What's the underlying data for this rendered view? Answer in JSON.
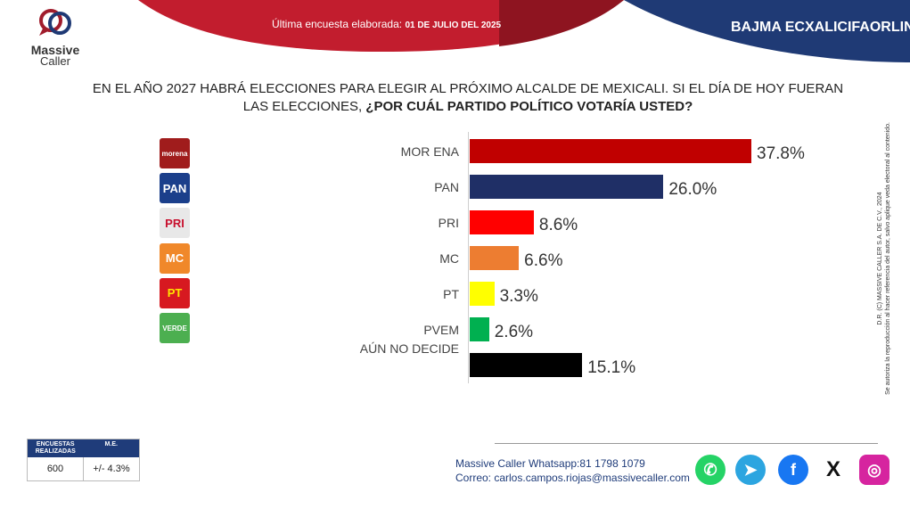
{
  "header": {
    "survey_label": "Última encuesta elaborada:",
    "survey_date": "01 DE JULIO DEL 2025",
    "region": "BAJMA ECXALICIFAORLIN"
  },
  "logo": {
    "line1": "Massive",
    "line2": "Caller"
  },
  "question": {
    "line1": "EN EL AÑO 2027 HABRÁ ELECCIONES PARA ELEGIR AL PRÓXIMO ALCALDE DE MEXICALI. SI EL DÍA DE HOY FUERAN",
    "line2_plain": "LAS ELECCIONES, ",
    "line2_bold": "¿POR CUÁL PARTIDO POLÍTICO VOTARÍA USTED?"
  },
  "party_logos": [
    {
      "text": "morena",
      "icon": "morena-logo-icon",
      "bg": "#a01c1c",
      "fg": "#ffffff"
    },
    {
      "text": "PAN",
      "icon": "pan-logo-icon",
      "bg": "#1b3f8b",
      "fg": "#ffffff"
    },
    {
      "text": "PRI",
      "icon": "pri-logo-icon",
      "bg": "#e8e8e8",
      "fg": "#c8102e"
    },
    {
      "text": "MC",
      "icon": "mc-logo-icon",
      "bg": "#f0882a",
      "fg": "#ffffff"
    },
    {
      "text": "PT",
      "icon": "pt-logo-icon",
      "bg": "#d71920",
      "fg": "#ffe600"
    },
    {
      "text": "VERDE",
      "icon": "verde-logo-icon",
      "bg": "#4caf50",
      "fg": "#ffffff"
    }
  ],
  "chart_data": {
    "type": "bar",
    "orientation": "horizontal",
    "title": "¿POR CUÁL PARTIDO POLÍTICO VOTARÍA USTED?",
    "categories": [
      "MOR ENA",
      "PAN",
      "PRI",
      "MC",
      "PT",
      "PVEM",
      "AÚN NO DECIDE"
    ],
    "values": [
      37.8,
      26.0,
      8.6,
      6.6,
      3.3,
      2.6,
      15.1
    ],
    "value_labels": [
      "37.8%",
      "26.0%",
      "8.6%",
      "6.6%",
      "3.3%",
      "2.6%",
      "15.1%"
    ],
    "colors": [
      "#c00000",
      "#1f2f66",
      "#ff0000",
      "#ed7d31",
      "#ffff00",
      "#00b050",
      "#000000"
    ],
    "xlim": [
      0,
      40
    ],
    "grid": false,
    "legend": "none"
  },
  "side_note": {
    "line1": "D.R. (C) MASSIVE CALLER S.A. DE C.V., 2024",
    "line2": "Se autoriza la reproducción al hacer referencia del autor, salvo aplique veda electoral al contenido."
  },
  "stats": {
    "col1_header": "ENCUESTAS REALIZADAS",
    "col2_header": "M.E.",
    "col1_value": "600",
    "col2_value": "+/- 4.3%"
  },
  "contact": {
    "whatsapp": "Massive Caller Whatsapp:81 1798 1079",
    "email": "Correo: carlos.campos.riojas@massivecaller.com"
  },
  "social": [
    {
      "icon": "whatsapp-icon",
      "glyph": "✆",
      "color": "#25d366"
    },
    {
      "icon": "telegram-icon",
      "glyph": "➤",
      "color": "#2ca5e0"
    },
    {
      "icon": "facebook-icon",
      "glyph": "f",
      "color": "#1877f2"
    },
    {
      "icon": "x-icon",
      "glyph": "X",
      "color": "#111111"
    },
    {
      "icon": "instagram-icon",
      "glyph": "◎",
      "color": "#d6249f"
    }
  ]
}
